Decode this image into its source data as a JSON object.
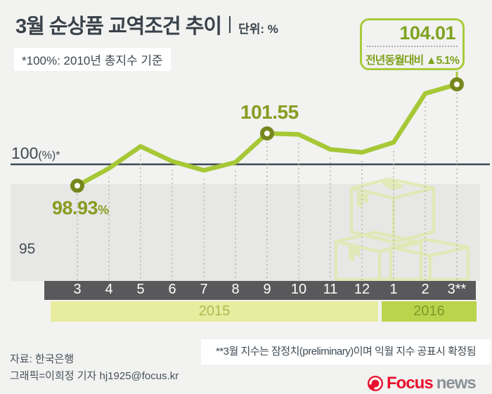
{
  "header": {
    "title": "3월 순상품 교역조건 추이",
    "unit_label": "단위: %",
    "subtitle": "*100%: 2010년 총지수 기준"
  },
  "callout": {
    "value": "104.01",
    "yoy": "전년동월대비 ▲5.1%"
  },
  "chart_data": {
    "type": "line",
    "title": "3월 순상품 교역조건 추이",
    "ylabel": "%",
    "categories": [
      "3",
      "4",
      "5",
      "6",
      "7",
      "8",
      "9",
      "10",
      "11",
      "12",
      "1",
      "2",
      "3**"
    ],
    "values": [
      98.93,
      99.8,
      100.9,
      100.15,
      99.7,
      100.1,
      101.55,
      101.5,
      100.75,
      100.6,
      101.1,
      103.55,
      104.01
    ],
    "marker_indices": [
      0,
      6,
      12
    ],
    "baseline": {
      "value": 100,
      "label_main": "100",
      "label_suffix": "(%)*"
    },
    "y_gridline_label": "95",
    "ylim": [
      95,
      105
    ],
    "annotations": [
      {
        "index": 0,
        "text": "98.93",
        "suffix": "%"
      },
      {
        "index": 6,
        "text": "101.55"
      },
      {
        "index": 12,
        "text": "104.01",
        "note": "전년동월대비 ▲5.1%"
      }
    ],
    "year_bands": [
      {
        "label": "2015",
        "months": [
          "3",
          "4",
          "5",
          "6",
          "7",
          "8",
          "9",
          "10",
          "11",
          "12"
        ]
      },
      {
        "label": "2016",
        "months": [
          "1",
          "2",
          "3**"
        ]
      }
    ],
    "line_color": "#a6c836",
    "marker_color": "#77871d",
    "legend": false,
    "grid": "vertical-dotted"
  },
  "footnote": "**3월 지수는 잠정치(preliminary)이며 익월 지수 공표시 확정됨",
  "source": "자료: 한국은행",
  "credit": "그래픽=이희정 기자 hj1925@focus.kr",
  "logo": {
    "brand": "Focus",
    "suffix": "news"
  }
}
